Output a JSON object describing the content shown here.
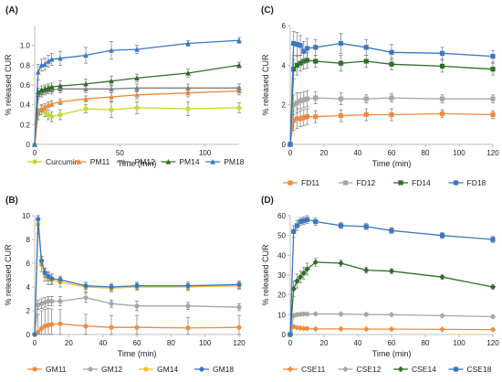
{
  "figure": {
    "panels": [
      {
        "label": "(A)"
      },
      {
        "label": "(C)"
      },
      {
        "label": "(B)"
      },
      {
        "label": "(D)"
      }
    ]
  },
  "chart_data": [
    {
      "panel": "(A)",
      "type": "line",
      "title": "",
      "xlabel": "Time (min)",
      "ylabel": "% released CUR",
      "xlim": [
        0,
        120
      ],
      "ylim": [
        0,
        1.2
      ],
      "xticks": [
        0,
        50,
        100
      ],
      "yticks": [
        0,
        0.2,
        0.4,
        0.6,
        0.8,
        1.0
      ],
      "ytick_labels": [
        "0",
        "0.2",
        "0.4",
        "0.6",
        "0.8",
        "1.0"
      ],
      "grid": false,
      "legend_position": "bottom",
      "series": [
        {
          "name": "Curcumin",
          "color": "#c8d82a",
          "marker": "circle",
          "x": [
            0,
            2,
            4,
            6,
            8,
            10,
            15,
            30,
            45,
            60,
            90,
            120
          ],
          "y": [
            0,
            0.3,
            0.35,
            0.33,
            0.3,
            0.28,
            0.3,
            0.36,
            0.35,
            0.37,
            0.36,
            0.37
          ],
          "err": [
            0,
            0.05,
            0.05,
            0.05,
            0.05,
            0.05,
            0.05,
            0.04,
            0.08,
            0.06,
            0.07,
            0.05
          ]
        },
        {
          "name": "PM11",
          "color": "#f08a3c",
          "marker": "triangle",
          "x": [
            0,
            2,
            4,
            6,
            8,
            10,
            15,
            30,
            45,
            60,
            90,
            120
          ],
          "y": [
            0,
            0.33,
            0.36,
            0.38,
            0.4,
            0.41,
            0.43,
            0.46,
            0.48,
            0.5,
            0.52,
            0.54
          ],
          "err": [
            0,
            0.03,
            0.03,
            0.03,
            0.03,
            0.03,
            0.03,
            0.03,
            0.04,
            0.04,
            0.04,
            0.04
          ]
        },
        {
          "name": "PM12",
          "color": "#7f7f7f",
          "marker": "triangle",
          "x": [
            0,
            2,
            4,
            6,
            8,
            10,
            15,
            30,
            45,
            60,
            90,
            120
          ],
          "y": [
            0,
            0.5,
            0.52,
            0.54,
            0.55,
            0.55,
            0.56,
            0.56,
            0.56,
            0.57,
            0.57,
            0.57
          ],
          "err": [
            0,
            0.04,
            0.04,
            0.04,
            0.04,
            0.04,
            0.04,
            0.04,
            0.04,
            0.04,
            0.04,
            0.04
          ]
        },
        {
          "name": "PM14",
          "color": "#2f6e2a",
          "marker": "triangle",
          "x": [
            0,
            2,
            4,
            6,
            8,
            10,
            15,
            30,
            45,
            60,
            90,
            120
          ],
          "y": [
            0,
            0.53,
            0.55,
            0.56,
            0.57,
            0.58,
            0.59,
            0.61,
            0.64,
            0.67,
            0.72,
            0.8
          ],
          "err": [
            0,
            0.04,
            0.04,
            0.04,
            0.04,
            0.04,
            0.05,
            0.05,
            0.05,
            0.04,
            0.04,
            0.03
          ]
        },
        {
          "name": "PM18",
          "color": "#3b78c3",
          "marker": "triangle",
          "x": [
            0,
            2,
            4,
            6,
            8,
            10,
            15,
            30,
            45,
            60,
            90,
            120
          ],
          "y": [
            0,
            0.73,
            0.8,
            0.81,
            0.84,
            0.86,
            0.87,
            0.9,
            0.95,
            0.96,
            1.02,
            1.05
          ],
          "err": [
            0,
            0.08,
            0.06,
            0.06,
            0.06,
            0.06,
            0.07,
            0.08,
            0.09,
            0.04,
            0.03,
            0.03
          ]
        }
      ]
    },
    {
      "panel": "(C)",
      "type": "line",
      "title": "",
      "xlabel": "Time (min)",
      "ylabel": "% released CUR",
      "xlim": [
        0,
        120
      ],
      "ylim": [
        0,
        6
      ],
      "xticks": [
        0,
        20,
        40,
        60,
        80,
        100,
        120
      ],
      "yticks": [
        0,
        2,
        4,
        6
      ],
      "ytick_labels": [
        "0",
        "2",
        "4",
        "6"
      ],
      "grid": false,
      "legend_position": "bottom",
      "series": [
        {
          "name": "FD11",
          "color": "#f08a3c",
          "marker": "square",
          "x": [
            0,
            2,
            4,
            6,
            8,
            10,
            15,
            30,
            45,
            60,
            90,
            120
          ],
          "y": [
            0,
            1.2,
            1.3,
            1.3,
            1.35,
            1.4,
            1.4,
            1.45,
            1.5,
            1.5,
            1.55,
            1.5
          ],
          "err": [
            0,
            0.5,
            0.5,
            0.4,
            0.4,
            0.4,
            0.3,
            0.3,
            0.3,
            0.3,
            0.2,
            0.2
          ]
        },
        {
          "name": "FD12",
          "color": "#a6a6a6",
          "marker": "square",
          "x": [
            0,
            2,
            4,
            6,
            8,
            10,
            15,
            30,
            45,
            60,
            90,
            120
          ],
          "y": [
            0,
            2.0,
            2.1,
            2.2,
            2.25,
            2.3,
            2.35,
            2.3,
            2.3,
            2.35,
            2.3,
            2.3
          ],
          "err": [
            0,
            0.5,
            0.5,
            0.4,
            0.4,
            0.4,
            0.3,
            0.3,
            0.2,
            0.2,
            0.2,
            0.2
          ]
        },
        {
          "name": "FD14",
          "color": "#2f6e2a",
          "marker": "square",
          "x": [
            0,
            2,
            4,
            6,
            8,
            10,
            15,
            30,
            45,
            60,
            90,
            120
          ],
          "y": [
            0,
            3.8,
            4.0,
            4.1,
            4.2,
            4.25,
            4.2,
            4.1,
            4.2,
            4.05,
            3.95,
            3.8
          ],
          "err": [
            0,
            0.5,
            0.5,
            0.4,
            0.4,
            0.4,
            0.3,
            0.4,
            0.3,
            0.3,
            0.3,
            0.3
          ]
        },
        {
          "name": "FD18",
          "color": "#3b78c3",
          "marker": "square",
          "x": [
            0,
            2,
            4,
            6,
            8,
            10,
            15,
            30,
            45,
            60,
            90,
            120
          ],
          "y": [
            0,
            5.1,
            5.05,
            5.0,
            4.7,
            4.85,
            4.9,
            5.1,
            4.9,
            4.65,
            4.6,
            4.45
          ],
          "err": [
            0,
            0.6,
            0.6,
            0.5,
            0.5,
            0.5,
            0.4,
            0.5,
            0.4,
            0.4,
            0.3,
            0.3
          ]
        }
      ]
    },
    {
      "panel": "(B)",
      "type": "line",
      "title": "",
      "xlabel": "Time (min)",
      "ylabel": "% released CUR",
      "xlim": [
        0,
        120
      ],
      "ylim": [
        0,
        10
      ],
      "xticks": [
        0,
        20,
        40,
        60,
        80,
        100,
        120
      ],
      "yticks": [
        0,
        2,
        4,
        6,
        8,
        10
      ],
      "ytick_labels": [
        "0",
        "2",
        "4",
        "6",
        "8",
        "10"
      ],
      "grid": false,
      "legend_position": "bottom",
      "series": [
        {
          "name": "GM11",
          "color": "#f08a3c",
          "marker": "circle",
          "x": [
            0,
            2,
            4,
            6,
            8,
            10,
            15,
            30,
            45,
            60,
            90,
            120
          ],
          "y": [
            0,
            0.2,
            0.5,
            0.7,
            0.8,
            0.85,
            0.9,
            0.7,
            0.6,
            0.6,
            0.55,
            0.6
          ],
          "err": [
            0,
            1.5,
            1.5,
            1.4,
            1.4,
            1.3,
            1.2,
            1.0,
            1.0,
            1.0,
            0.9,
            1.0
          ]
        },
        {
          "name": "GM12",
          "color": "#a6a6a6",
          "marker": "circle",
          "x": [
            0,
            2,
            4,
            6,
            8,
            10,
            15,
            30,
            45,
            60,
            90,
            120
          ],
          "y": [
            0,
            2.5,
            2.6,
            2.7,
            2.8,
            2.8,
            2.8,
            3.1,
            2.6,
            2.4,
            2.4,
            2.3
          ],
          "err": [
            0,
            0.4,
            0.4,
            0.4,
            0.4,
            0.4,
            0.4,
            0.4,
            0.3,
            0.4,
            0.3,
            0.3
          ]
        },
        {
          "name": "GM14",
          "color": "#f2c21b",
          "marker": "circle",
          "x": [
            0,
            2,
            4,
            6,
            8,
            10,
            15,
            30,
            45,
            60,
            90,
            120
          ],
          "y": [
            0,
            9.3,
            5.9,
            5.0,
            4.7,
            4.6,
            4.4,
            4.0,
            3.9,
            4.0,
            4.0,
            4.1
          ],
          "err": [
            0,
            0.8,
            0.6,
            0.5,
            0.5,
            0.4,
            0.4,
            0.4,
            0.3,
            0.3,
            0.3,
            0.3
          ]
        },
        {
          "name": "GM18",
          "color": "#3b78c3",
          "marker": "circle",
          "x": [
            0,
            2,
            4,
            6,
            8,
            10,
            15,
            30,
            45,
            60,
            90,
            120
          ],
          "y": [
            0,
            9.7,
            6.2,
            5.2,
            4.9,
            4.7,
            4.6,
            4.1,
            4.0,
            4.1,
            4.1,
            4.2
          ],
          "err": [
            0,
            0.5,
            0.4,
            0.4,
            0.4,
            0.4,
            0.3,
            0.3,
            0.3,
            0.3,
            0.3,
            0.3
          ]
        }
      ]
    },
    {
      "panel": "(D)",
      "type": "line",
      "title": "",
      "xlabel": "Time (min)",
      "ylabel": "% released CUR",
      "xlim": [
        0,
        120
      ],
      "ylim": [
        0,
        60
      ],
      "xticks": [
        0,
        20,
        40,
        60,
        80,
        100,
        120
      ],
      "yticks": [
        0,
        10,
        20,
        30,
        40,
        50,
        60
      ],
      "ytick_labels": [
        "0",
        "10",
        "20",
        "30",
        "40",
        "50",
        "60"
      ],
      "grid": false,
      "legend_position": "bottom",
      "series": [
        {
          "name": "CSE11",
          "color": "#f08a3c",
          "marker": "diamond",
          "x": [
            0,
            2,
            4,
            6,
            8,
            10,
            15,
            30,
            45,
            60,
            90,
            120
          ],
          "y": [
            0,
            4.0,
            3.5,
            3.2,
            3.0,
            3.0,
            2.8,
            2.8,
            2.7,
            2.7,
            2.6,
            2.5
          ],
          "err": [
            0,
            0.5,
            0.5,
            0.4,
            0.4,
            0.4,
            0.3,
            0.3,
            0.3,
            0.3,
            0.3,
            0.3
          ]
        },
        {
          "name": "CSE12",
          "color": "#a6a6a6",
          "marker": "diamond",
          "x": [
            0,
            2,
            4,
            6,
            8,
            10,
            15,
            30,
            45,
            60,
            90,
            120
          ],
          "y": [
            0,
            9.5,
            10.0,
            10.2,
            10.3,
            10.3,
            10.4,
            10.3,
            10.1,
            10.0,
            9.5,
            9.0
          ],
          "err": [
            0,
            0.8,
            0.8,
            0.7,
            0.7,
            0.7,
            0.6,
            0.6,
            0.6,
            0.6,
            0.5,
            0.5
          ]
        },
        {
          "name": "CSE14",
          "color": "#2f6e2a",
          "marker": "diamond",
          "x": [
            0,
            2,
            4,
            6,
            8,
            10,
            15,
            30,
            45,
            60,
            90,
            120
          ],
          "y": [
            0,
            23,
            27,
            29,
            31,
            33,
            36.5,
            36,
            32.5,
            32,
            29,
            24
          ],
          "err": [
            0,
            4.0,
            3.5,
            3.0,
            3.0,
            3.0,
            2.0,
            1.5,
            1.5,
            1.2,
            1.0,
            1.0
          ]
        },
        {
          "name": "CSE18",
          "color": "#3b78c3",
          "marker": "square",
          "x": [
            0,
            2,
            4,
            6,
            8,
            10,
            15,
            30,
            45,
            60,
            90,
            120
          ],
          "y": [
            0,
            52,
            55,
            57,
            57.5,
            58,
            57,
            55,
            54.5,
            52.5,
            50,
            48
          ],
          "err": [
            0,
            3.0,
            2.5,
            2.0,
            2.0,
            2.0,
            1.8,
            1.5,
            1.5,
            1.5,
            1.5,
            1.5
          ]
        }
      ]
    }
  ]
}
